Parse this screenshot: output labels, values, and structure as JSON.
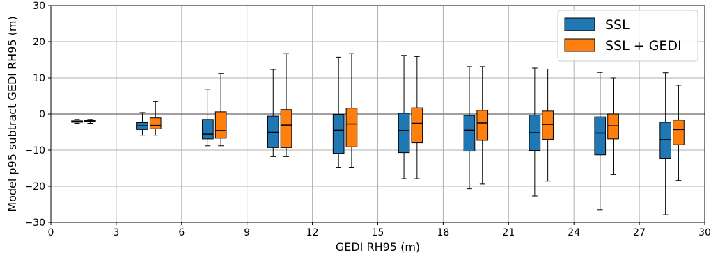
{
  "chart_data": {
    "type": "box",
    "xlabel": "GEDI RH95 (m)",
    "ylabel": "Model p95 subtract GEDI RH95 (m)",
    "xlim": [
      0,
      30
    ],
    "ylim": [
      -30,
      30
    ],
    "xticks": [
      0,
      3,
      6,
      9,
      12,
      15,
      18,
      21,
      24,
      27,
      30
    ],
    "yticks": [
      -30,
      -20,
      -10,
      0,
      10,
      20,
      30
    ],
    "ytick_labels": [
      "−30",
      "−20",
      "−10",
      "0",
      "10",
      "20",
      "30"
    ],
    "grid": true,
    "reference_line_y": 0,
    "legend_position": "top-right",
    "series": [
      {
        "name": "SSL",
        "color": "#1f77b4",
        "boxes": [
          {
            "x": 1.2,
            "whislo": -2.6,
            "q1": -2.3,
            "med": -2.1,
            "q3": -1.9,
            "whishi": -1.5
          },
          {
            "x": 4.2,
            "whislo": -5.9,
            "q1": -4.3,
            "med": -3.3,
            "q3": -2.4,
            "whishi": 0.4
          },
          {
            "x": 7.2,
            "whislo": -8.8,
            "q1": -6.9,
            "med": -5.6,
            "q3": -1.5,
            "whishi": 6.7
          },
          {
            "x": 10.2,
            "whislo": -11.8,
            "q1": -9.3,
            "med": -5.1,
            "q3": -0.6,
            "whishi": 12.3
          },
          {
            "x": 13.2,
            "whislo": -14.9,
            "q1": -10.9,
            "med": -4.5,
            "q3": -0.1,
            "whishi": 15.7
          },
          {
            "x": 16.2,
            "whislo": -17.9,
            "q1": -10.7,
            "med": -4.6,
            "q3": 0.2,
            "whishi": 16.2
          },
          {
            "x": 19.2,
            "whislo": -20.7,
            "q1": -10.3,
            "med": -4.5,
            "q3": -0.4,
            "whishi": 13.1
          },
          {
            "x": 22.2,
            "whislo": -22.7,
            "q1": -10.1,
            "med": -5.2,
            "q3": -0.3,
            "whishi": 12.7
          },
          {
            "x": 25.2,
            "whislo": -26.5,
            "q1": -11.3,
            "med": -5.3,
            "q3": -0.8,
            "whishi": 11.5
          },
          {
            "x": 28.2,
            "whislo": -27.9,
            "q1": -12.4,
            "med": -7.1,
            "q3": -2.3,
            "whishi": 11.4
          }
        ]
      },
      {
        "name": "SSL + GEDI",
        "color": "#ff7f0e",
        "boxes": [
          {
            "x": 1.8,
            "whislo": -2.6,
            "q1": -2.2,
            "med": -2.0,
            "q3": -1.8,
            "whishi": -1.5
          },
          {
            "x": 4.8,
            "whislo": -5.9,
            "q1": -4.1,
            "med": -3.2,
            "q3": -1.1,
            "whishi": 3.4
          },
          {
            "x": 7.8,
            "whislo": -8.8,
            "q1": -6.7,
            "med": -4.6,
            "q3": 0.6,
            "whishi": 11.2
          },
          {
            "x": 10.8,
            "whislo": -11.8,
            "q1": -9.3,
            "med": -3.1,
            "q3": 1.2,
            "whishi": 16.7
          },
          {
            "x": 13.8,
            "whislo": -14.9,
            "q1": -9.1,
            "med": -2.8,
            "q3": 1.6,
            "whishi": 16.7
          },
          {
            "x": 16.8,
            "whislo": -17.9,
            "q1": -8.0,
            "med": -2.6,
            "q3": 1.7,
            "whishi": 15.9
          },
          {
            "x": 19.8,
            "whislo": -19.4,
            "q1": -7.3,
            "med": -2.5,
            "q3": 1.0,
            "whishi": 13.1
          },
          {
            "x": 22.8,
            "whislo": -18.6,
            "q1": -7.0,
            "med": -2.9,
            "q3": 0.8,
            "whishi": 12.4
          },
          {
            "x": 25.8,
            "whislo": -16.8,
            "q1": -6.9,
            "med": -3.3,
            "q3": 0.0,
            "whishi": 10.0
          },
          {
            "x": 28.8,
            "whislo": -18.4,
            "q1": -8.5,
            "med": -4.3,
            "q3": -1.7,
            "whishi": 7.9
          }
        ]
      }
    ]
  }
}
